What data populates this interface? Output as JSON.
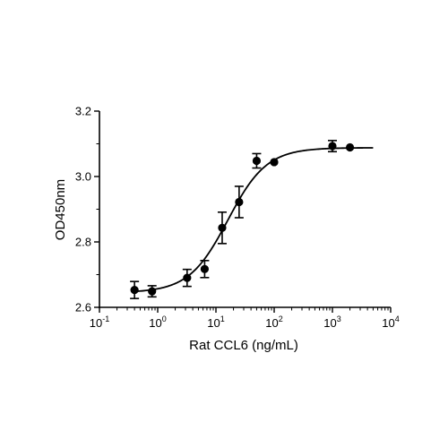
{
  "chart_data": {
    "type": "scatter",
    "title": "",
    "xlabel": "Rat CCL6 (ng/mL)",
    "ylabel": "OD450nm",
    "x_scale": "log",
    "xlim": [
      0.1,
      10000
    ],
    "ylim": [
      2.6,
      3.2
    ],
    "x_ticks": [
      {
        "base": "10",
        "exp": "-1"
      },
      {
        "base": "10",
        "exp": "0"
      },
      {
        "base": "10",
        "exp": "1"
      },
      {
        "base": "10",
        "exp": "2"
      },
      {
        "base": "10",
        "exp": "3"
      },
      {
        "base": "10",
        "exp": "4"
      }
    ],
    "y_ticks": [
      "2.6",
      "2.8",
      "3.0",
      "3.2"
    ],
    "grid": false,
    "legend": "none",
    "series": [
      {
        "points": [
          {
            "x": 0.4,
            "y": 2.653,
            "err": 0.026
          },
          {
            "x": 0.8,
            "y": 2.649,
            "err": 0.017
          },
          {
            "x": 3.2,
            "y": 2.69,
            "err": 0.026
          },
          {
            "x": 6.4,
            "y": 2.717,
            "err": 0.026
          },
          {
            "x": 12.8,
            "y": 2.843,
            "err": 0.048
          },
          {
            "x": 25,
            "y": 2.922,
            "err": 0.048
          },
          {
            "x": 50,
            "y": 3.048,
            "err": 0.022
          },
          {
            "x": 100,
            "y": 3.044,
            "err": 0
          },
          {
            "x": 1000,
            "y": 3.093,
            "err": 0.017
          },
          {
            "x": 2000,
            "y": 3.089,
            "err": 0
          }
        ]
      }
    ],
    "fit": {
      "model": "4PL",
      "bottom": 2.645,
      "top": 3.088,
      "ec50": 16,
      "hill": 1.3
    }
  },
  "colors": {
    "axis": "#000000",
    "marker": "#000000",
    "curve": "#000000"
  }
}
